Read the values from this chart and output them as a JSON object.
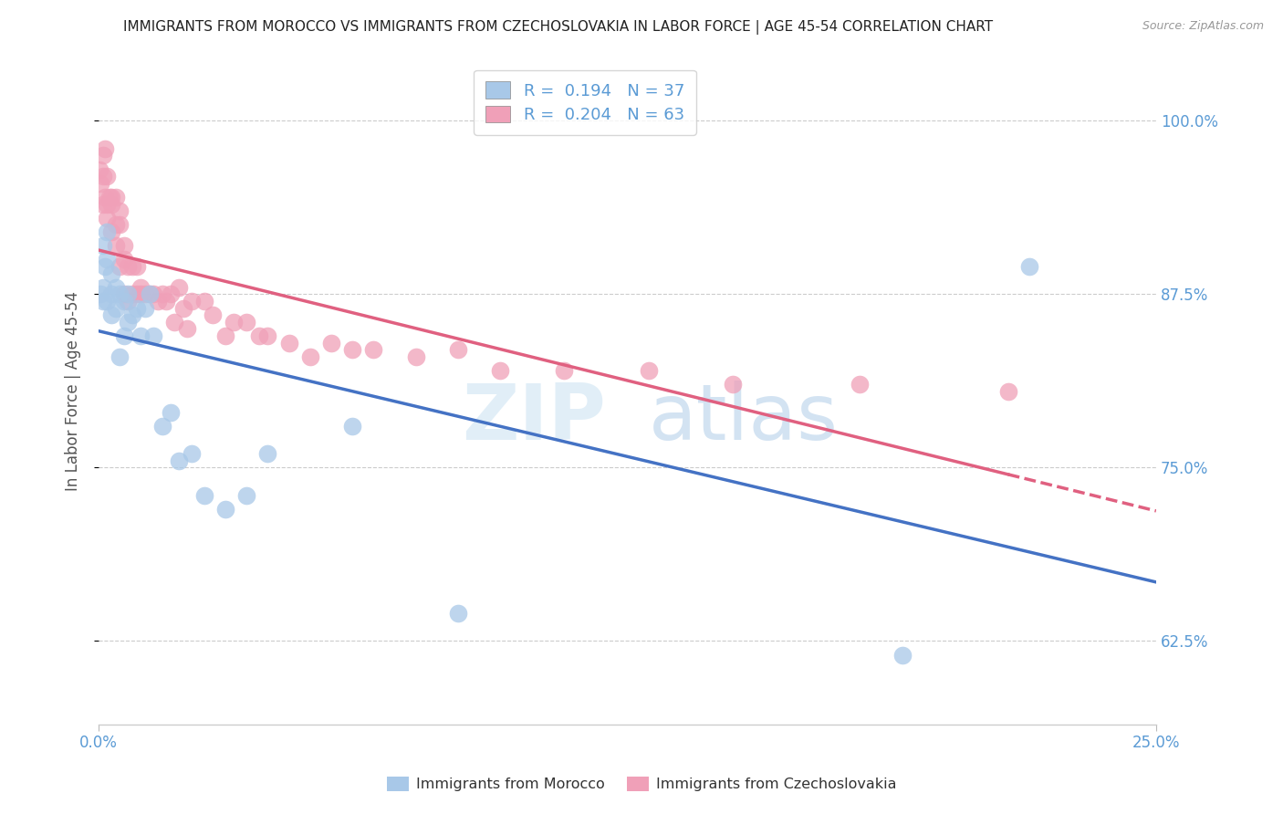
{
  "title": "IMMIGRANTS FROM MOROCCO VS IMMIGRANTS FROM CZECHOSLOVAKIA IN LABOR FORCE | AGE 45-54 CORRELATION CHART",
  "source": "Source: ZipAtlas.com",
  "ylabel": "In Labor Force | Age 45-54",
  "yticks": [
    0.625,
    0.75,
    0.875,
    1.0
  ],
  "ytick_labels": [
    "62.5%",
    "75.0%",
    "87.5%",
    "100.0%"
  ],
  "xmin": 0.0,
  "xmax": 0.25,
  "ymin": 0.565,
  "ymax": 1.045,
  "morocco_color": "#a8c8e8",
  "czechoslovakia_color": "#f0a0b8",
  "morocco_line_color": "#4472c4",
  "czechoslovakia_line_color": "#e06080",
  "morocco_R": 0.194,
  "morocco_N": 37,
  "czechoslovakia_R": 0.204,
  "czechoslovakia_N": 63,
  "morocco_scatter_x": [
    0.0005,
    0.001,
    0.001,
    0.001,
    0.0015,
    0.002,
    0.002,
    0.002,
    0.003,
    0.003,
    0.003,
    0.004,
    0.004,
    0.005,
    0.005,
    0.006,
    0.006,
    0.007,
    0.007,
    0.008,
    0.009,
    0.01,
    0.011,
    0.012,
    0.013,
    0.015,
    0.017,
    0.019,
    0.022,
    0.025,
    0.03,
    0.035,
    0.04,
    0.06,
    0.085,
    0.19,
    0.22
  ],
  "morocco_scatter_y": [
    0.875,
    0.88,
    0.91,
    0.87,
    0.895,
    0.87,
    0.9,
    0.92,
    0.875,
    0.86,
    0.89,
    0.88,
    0.865,
    0.875,
    0.83,
    0.87,
    0.845,
    0.875,
    0.855,
    0.86,
    0.865,
    0.845,
    0.865,
    0.875,
    0.845,
    0.78,
    0.79,
    0.755,
    0.76,
    0.73,
    0.72,
    0.73,
    0.76,
    0.78,
    0.645,
    0.615,
    0.895
  ],
  "czechoslovakia_scatter_x": [
    0.0003,
    0.0005,
    0.001,
    0.001,
    0.001,
    0.0015,
    0.0015,
    0.002,
    0.002,
    0.002,
    0.0025,
    0.003,
    0.003,
    0.003,
    0.004,
    0.004,
    0.004,
    0.005,
    0.005,
    0.005,
    0.006,
    0.006,
    0.006,
    0.007,
    0.007,
    0.008,
    0.008,
    0.009,
    0.009,
    0.01,
    0.01,
    0.011,
    0.012,
    0.013,
    0.014,
    0.015,
    0.016,
    0.017,
    0.018,
    0.019,
    0.02,
    0.021,
    0.022,
    0.025,
    0.027,
    0.03,
    0.032,
    0.035,
    0.038,
    0.04,
    0.045,
    0.05,
    0.055,
    0.06,
    0.065,
    0.075,
    0.085,
    0.095,
    0.11,
    0.13,
    0.15,
    0.18,
    0.215
  ],
  "czechoslovakia_scatter_y": [
    0.965,
    0.955,
    0.94,
    0.96,
    0.975,
    0.945,
    0.98,
    0.94,
    0.96,
    0.93,
    0.945,
    0.92,
    0.945,
    0.94,
    0.925,
    0.91,
    0.945,
    0.925,
    0.895,
    0.935,
    0.9,
    0.875,
    0.91,
    0.895,
    0.87,
    0.895,
    0.875,
    0.895,
    0.875,
    0.88,
    0.875,
    0.875,
    0.875,
    0.875,
    0.87,
    0.875,
    0.87,
    0.875,
    0.855,
    0.88,
    0.865,
    0.85,
    0.87,
    0.87,
    0.86,
    0.845,
    0.855,
    0.855,
    0.845,
    0.845,
    0.84,
    0.83,
    0.84,
    0.835,
    0.835,
    0.83,
    0.835,
    0.82,
    0.82,
    0.82,
    0.81,
    0.81,
    0.805
  ],
  "watermark_zip": "ZIP",
  "watermark_atlas": "atlas",
  "background_color": "#ffffff",
  "grid_color": "#cccccc",
  "title_color": "#222222",
  "axis_label_color": "#555555",
  "right_tick_color": "#5b9bd5",
  "bottom_tick_color": "#5b9bd5",
  "legend_r_n_color": "#5b9bd5"
}
